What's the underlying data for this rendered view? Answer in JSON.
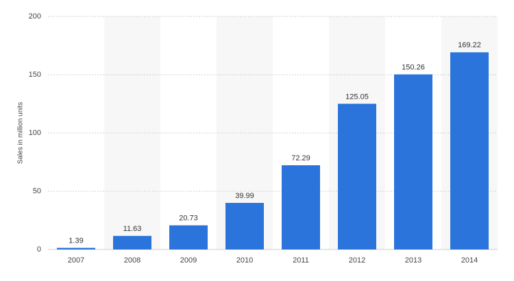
{
  "chart_data": {
    "type": "bar",
    "y_label": "Sales in million units",
    "categories": [
      "2007",
      "2008",
      "2009",
      "2010",
      "2011",
      "2012",
      "2013",
      "2014"
    ],
    "values": [
      1.39,
      11.63,
      20.73,
      39.99,
      72.29,
      125.05,
      150.26,
      169.22
    ],
    "color": "#2a74db",
    "ylim": [
      0,
      200
    ],
    "yticks": [
      0,
      50,
      100,
      150,
      200
    ],
    "grid": true
  }
}
